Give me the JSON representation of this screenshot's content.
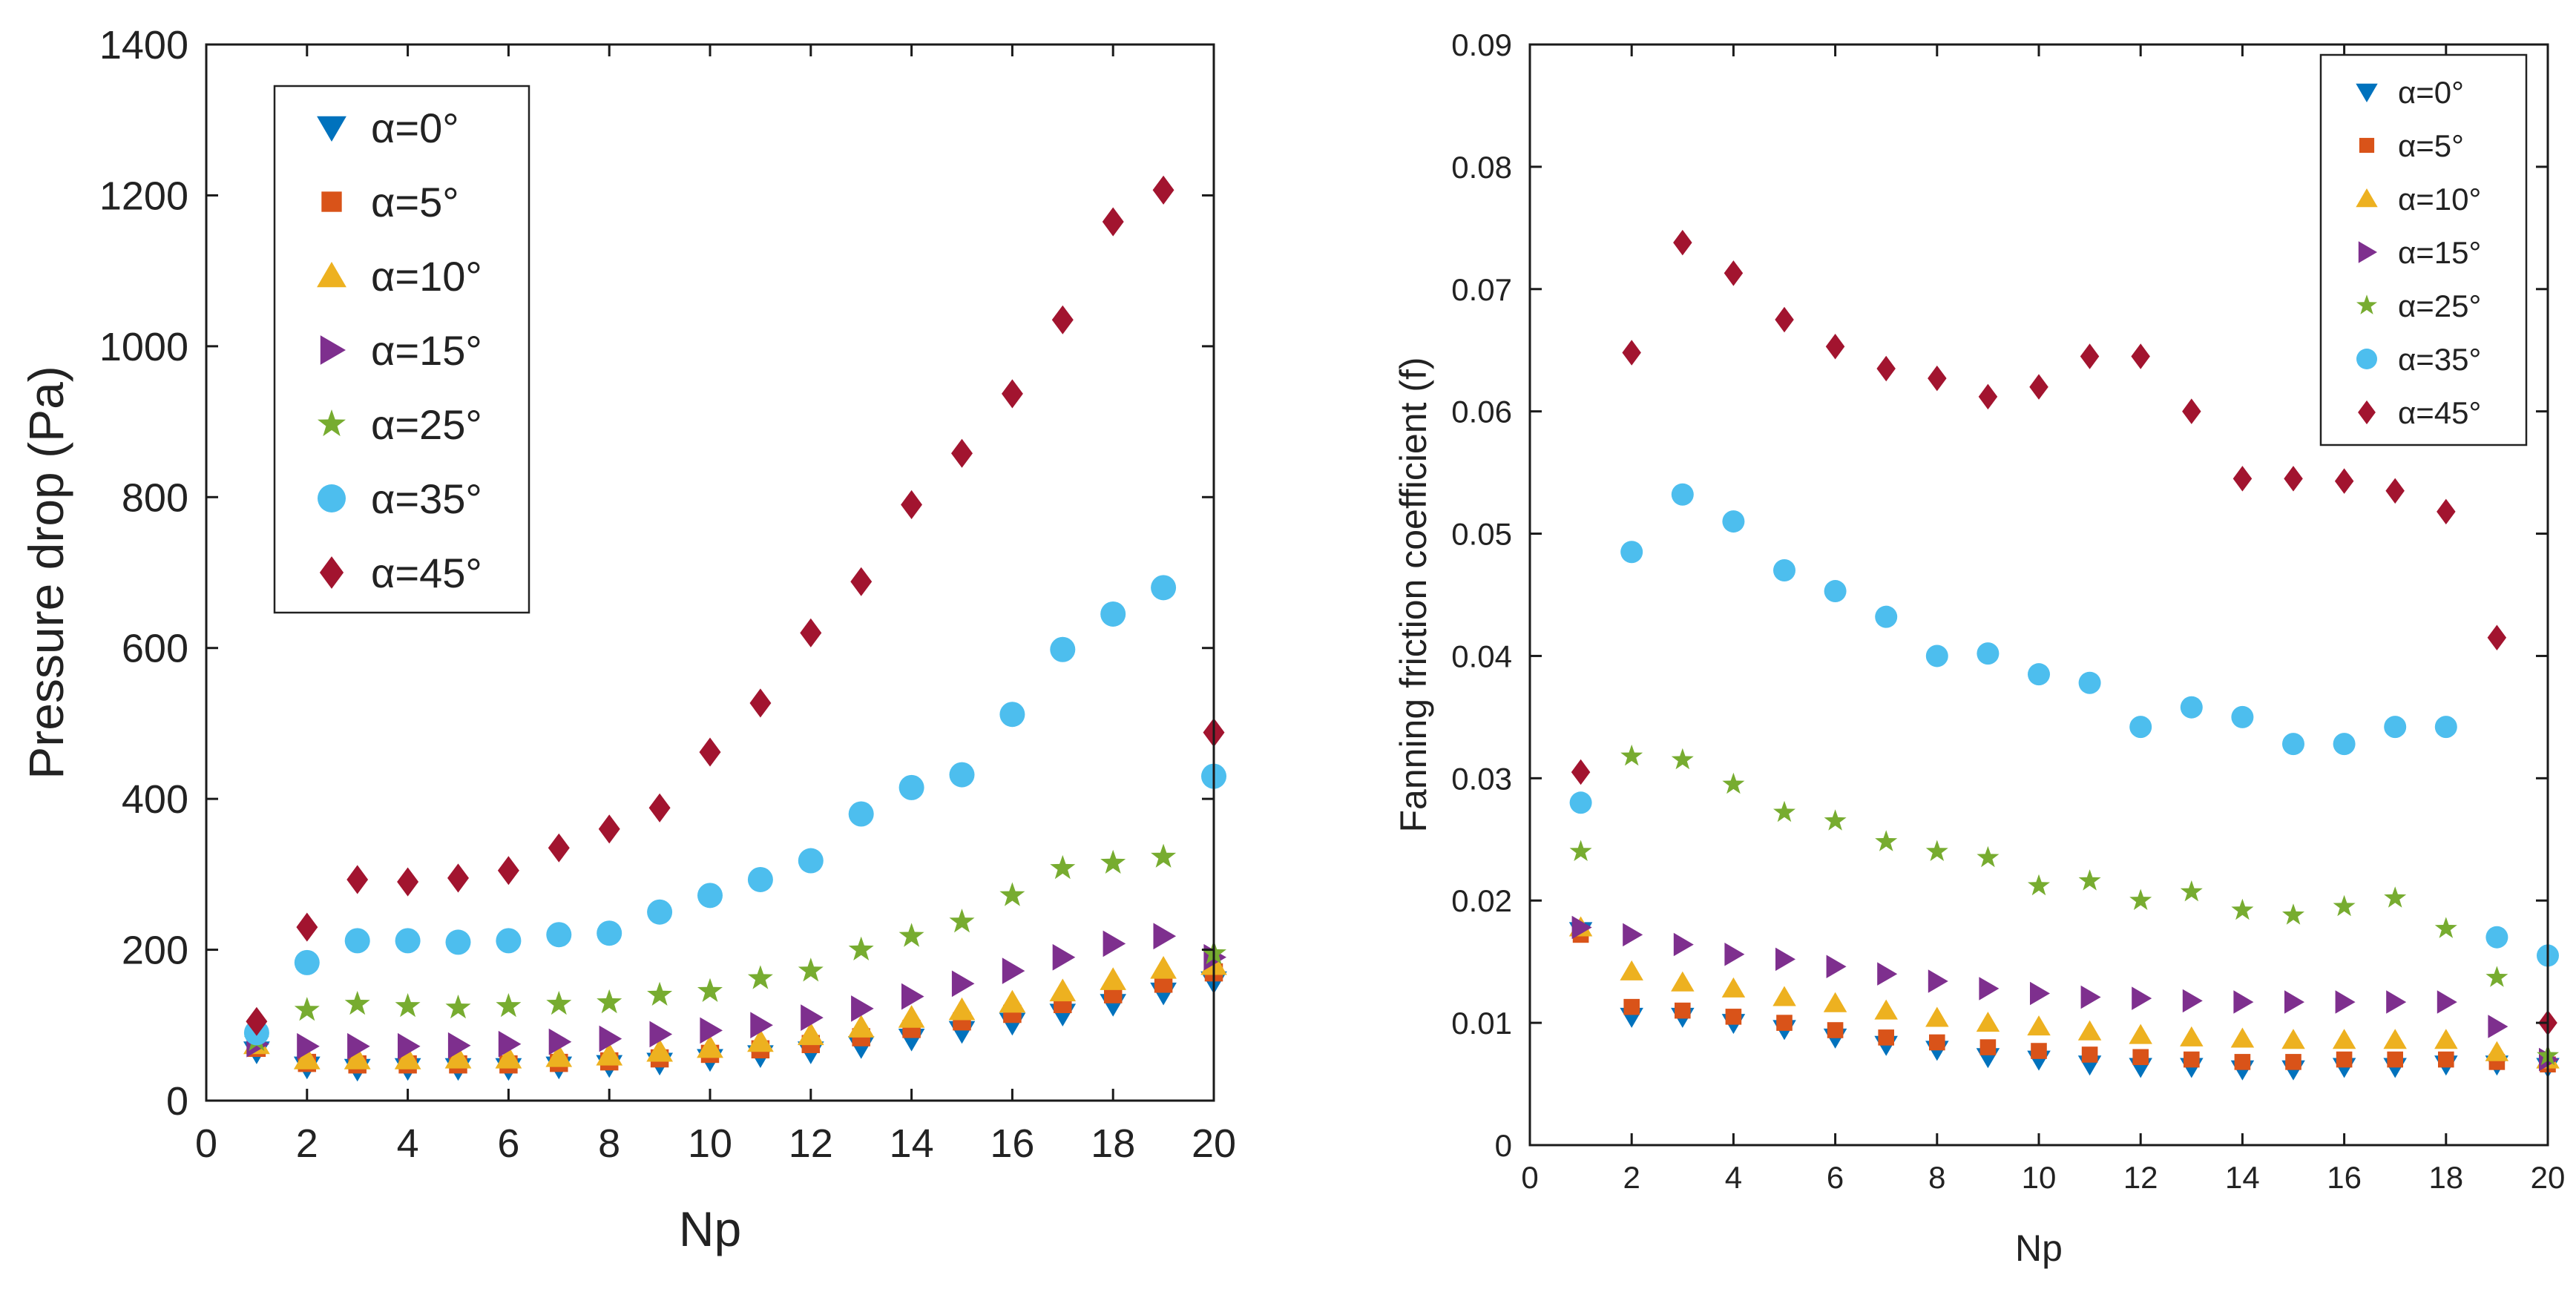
{
  "chart_data": [
    {
      "type": "scatter",
      "title": "",
      "xlabel": "Np",
      "ylabel": "Pressure drop (Pa)",
      "xlim": [
        0,
        20
      ],
      "ylim": [
        0,
        1400
      ],
      "xticks": [
        "0",
        "2",
        "4",
        "6",
        "8",
        "10",
        "12",
        "14",
        "16",
        "18",
        "20"
      ],
      "yticks": [
        "0",
        "200",
        "400",
        "600",
        "800",
        "1000",
        "1200",
        "1400"
      ],
      "grid": false,
      "legend_position": "top-left",
      "x": [
        1,
        2,
        3,
        4,
        5,
        6,
        7,
        8,
        9,
        10,
        11,
        12,
        13,
        14,
        15,
        16,
        17,
        18,
        19,
        20
      ],
      "series": [
        {
          "name": "α=0°",
          "marker": "triangle-down",
          "color": "#0072BD",
          "values": [
            65,
            45,
            42,
            43,
            43,
            43,
            45,
            47,
            50,
            55,
            60,
            65,
            72,
            82,
            92,
            103,
            115,
            128,
            143,
            158
          ]
        },
        {
          "name": "α=5°",
          "marker": "square",
          "color": "#D95319",
          "values": [
            70,
            50,
            48,
            48,
            48,
            48,
            50,
            52,
            56,
            62,
            68,
            75,
            84,
            95,
            105,
            115,
            128,
            141,
            155,
            170
          ]
        },
        {
          "name": "α=10°",
          "marker": "triangle-up",
          "color": "#EDB120",
          "values": [
            75,
            55,
            55,
            55,
            56,
            56,
            58,
            60,
            65,
            70,
            78,
            87,
            97,
            110,
            120,
            130,
            145,
            160,
            175,
            180
          ]
        },
        {
          "name": "α=15°",
          "marker": "triangle-right",
          "color": "#7E2F8E",
          "values": [
            75,
            72,
            72,
            72,
            73,
            75,
            78,
            82,
            88,
            93,
            100,
            110,
            122,
            138,
            155,
            172,
            190,
            208,
            218,
            190
          ]
        },
        {
          "name": "α=25°",
          "marker": "star",
          "color": "#77AC30",
          "values": [
            80,
            120,
            128,
            125,
            123,
            125,
            128,
            130,
            140,
            145,
            162,
            172,
            200,
            218,
            237,
            272,
            308,
            315,
            323,
            195
          ]
        },
        {
          "name": "α=35°",
          "marker": "circle",
          "color": "#4DBEEE",
          "values": [
            90,
            183,
            212,
            212,
            210,
            212,
            220,
            222,
            250,
            272,
            293,
            318,
            380,
            415,
            432,
            512,
            598,
            645,
            680,
            430
          ]
        },
        {
          "name": "α=45°",
          "marker": "diamond",
          "color": "#A2142F",
          "values": [
            105,
            230,
            293,
            290,
            295,
            305,
            335,
            360,
            388,
            462,
            527,
            620,
            688,
            790,
            858,
            937,
            1035,
            1165,
            1207,
            488
          ]
        }
      ]
    },
    {
      "type": "scatter",
      "title": "",
      "xlabel": "Np",
      "ylabel": "Fanning friction coefficient (f)",
      "xlim": [
        0,
        20
      ],
      "ylim": [
        0,
        0.09
      ],
      "xticks": [
        "0",
        "2",
        "4",
        "6",
        "8",
        "10",
        "12",
        "14",
        "16",
        "18",
        "20"
      ],
      "yticks": [
        "0",
        "0.01",
        "0.02",
        "0.03",
        "0.04",
        "0.05",
        "0.06",
        "0.07",
        "0.08",
        "0.09"
      ],
      "grid": false,
      "legend_position": "top-right",
      "x": [
        1,
        2,
        3,
        4,
        5,
        6,
        7,
        8,
        9,
        10,
        11,
        12,
        13,
        14,
        15,
        16,
        17,
        18,
        19,
        20
      ],
      "series": [
        {
          "name": "α=0°",
          "marker": "triangle-down",
          "color": "#0072BD",
          "values": [
            0.0175,
            0.0105,
            0.0105,
            0.01,
            0.0095,
            0.0088,
            0.0082,
            0.0078,
            0.0072,
            0.007,
            0.0066,
            0.0064,
            0.0064,
            0.0062,
            0.0062,
            0.0064,
            0.0064,
            0.0066,
            0.0066,
            0.0064
          ]
        },
        {
          "name": "α=5°",
          "marker": "square",
          "color": "#D95319",
          "values": [
            0.0172,
            0.0113,
            0.011,
            0.0105,
            0.01,
            0.0094,
            0.0088,
            0.0084,
            0.008,
            0.0077,
            0.0074,
            0.0072,
            0.007,
            0.0068,
            0.0068,
            0.007,
            0.007,
            0.007,
            0.0068,
            0.0066
          ]
        },
        {
          "name": "α=10°",
          "marker": "triangle-up",
          "color": "#EDB120",
          "values": [
            0.0178,
            0.0142,
            0.0133,
            0.0128,
            0.0121,
            0.0116,
            0.011,
            0.0104,
            0.01,
            0.0097,
            0.0093,
            0.009,
            0.0088,
            0.0087,
            0.0086,
            0.0086,
            0.0086,
            0.0086,
            0.0076,
            0.007
          ]
        },
        {
          "name": "α=15°",
          "marker": "triangle-right",
          "color": "#7E2F8E",
          "values": [
            0.0178,
            0.0172,
            0.0164,
            0.0156,
            0.0152,
            0.0146,
            0.014,
            0.0134,
            0.0128,
            0.0124,
            0.0121,
            0.012,
            0.0118,
            0.0117,
            0.0117,
            0.0117,
            0.0117,
            0.0117,
            0.0097,
            0.007
          ]
        },
        {
          "name": "α=25°",
          "marker": "star",
          "color": "#77AC30",
          "values": [
            0.024,
            0.0318,
            0.0315,
            0.0295,
            0.0272,
            0.0265,
            0.0248,
            0.024,
            0.0235,
            0.0212,
            0.0216,
            0.02,
            0.0207,
            0.0192,
            0.0188,
            0.0195,
            0.0202,
            0.0177,
            0.0137,
            0.0073
          ]
        },
        {
          "name": "α=35°",
          "marker": "circle",
          "color": "#4DBEEE",
          "values": [
            0.028,
            0.0485,
            0.0532,
            0.051,
            0.047,
            0.0453,
            0.0432,
            0.04,
            0.0402,
            0.0385,
            0.0378,
            0.0342,
            0.0358,
            0.035,
            0.0328,
            0.0328,
            0.0342,
            0.0342,
            0.017,
            0.0155
          ]
        },
        {
          "name": "α=45°",
          "marker": "diamond",
          "color": "#A2142F",
          "values": [
            0.0305,
            0.0648,
            0.0738,
            0.0713,
            0.0675,
            0.0653,
            0.0635,
            0.0627,
            0.0612,
            0.062,
            0.0645,
            0.0645,
            0.06,
            0.0545,
            0.0545,
            0.0543,
            0.0535,
            0.0518,
            0.0415,
            0.01
          ]
        }
      ]
    }
  ]
}
